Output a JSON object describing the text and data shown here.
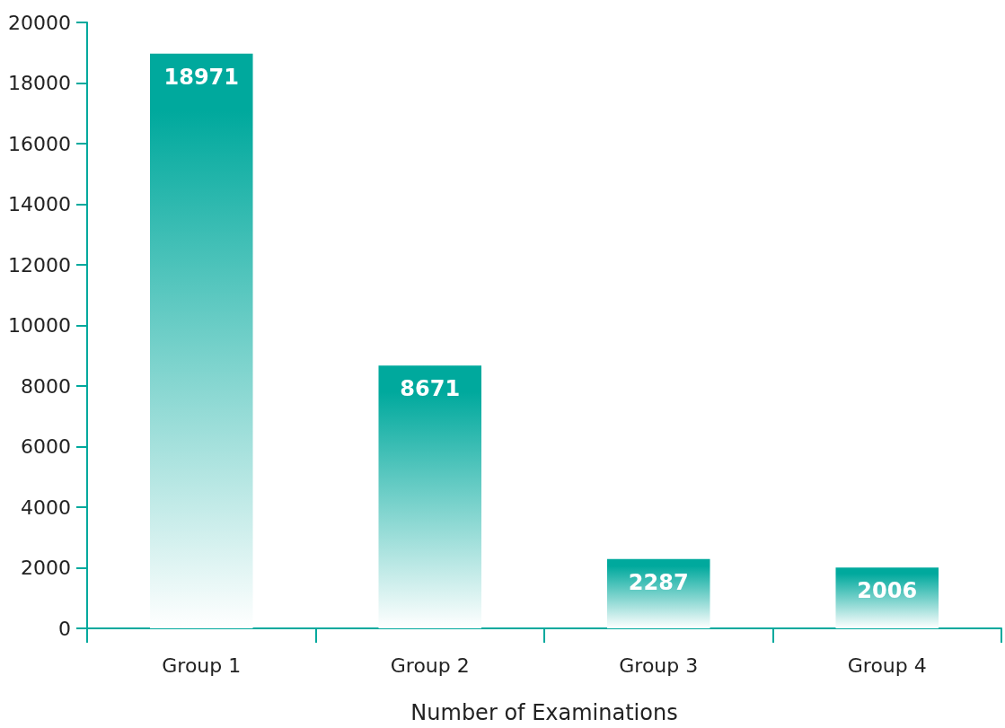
{
  "chart_data": {
    "type": "bar",
    "xlabel": "Number of Examinations",
    "categories": [
      "Group 1",
      "Group 2",
      "Group 3",
      "Group 4"
    ],
    "values": [
      18971,
      8671,
      2287,
      2006
    ],
    "color": "#00a99d",
    "ylim": [
      0,
      20000
    ],
    "yticks": [
      0,
      2000,
      4000,
      6000,
      8000,
      10000,
      12000,
      14000,
      16000,
      18000,
      20000
    ],
    "data_labels": true,
    "grid": false
  }
}
